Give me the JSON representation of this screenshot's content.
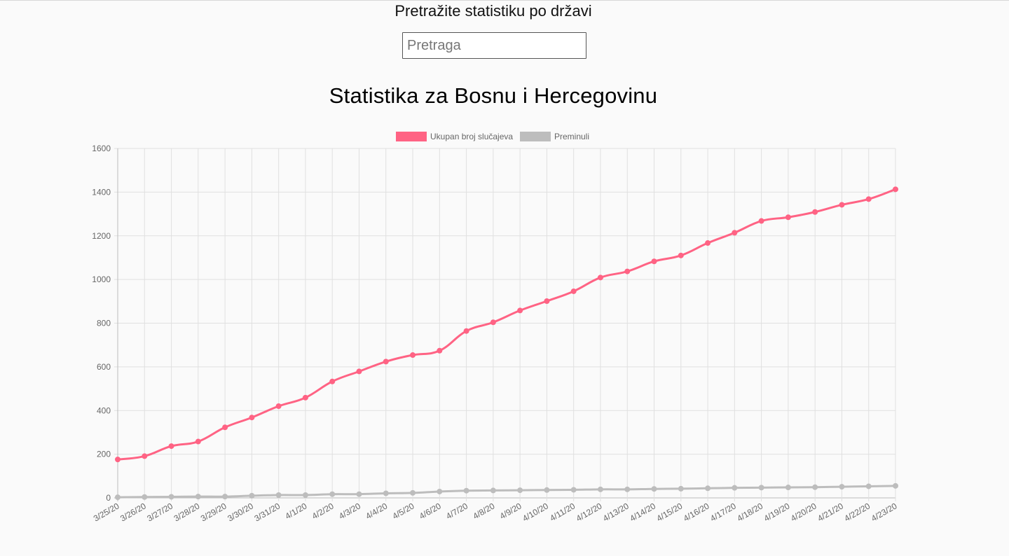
{
  "search": {
    "title": "Pretražite statistiku po državi",
    "placeholder": "Pretraga",
    "value": ""
  },
  "page_title": "Statistika za Bosnu i Hercegovinu",
  "colors": {
    "cases": "#ff6384",
    "deaths": "#bdbdbd",
    "grid": "#e0e0e0",
    "axis_text": "#666666"
  },
  "chart_data": {
    "type": "line",
    "title": "Statistika za Bosnu i Hercegovinu",
    "xlabel": "",
    "ylabel": "",
    "ylim": [
      0,
      1600
    ],
    "yticks": [
      0,
      200,
      400,
      600,
      800,
      1000,
      1200,
      1400,
      1600
    ],
    "grid": true,
    "legend_position": "top-center",
    "categories": [
      "3/25/20",
      "3/26/20",
      "3/27/20",
      "3/28/20",
      "3/29/20",
      "3/30/20",
      "3/31/20",
      "4/1/20",
      "4/2/20",
      "4/3/20",
      "4/4/20",
      "4/5/20",
      "4/6/20",
      "4/7/20",
      "4/8/20",
      "4/9/20",
      "4/10/20",
      "4/11/20",
      "4/12/20",
      "4/13/20",
      "4/14/20",
      "4/15/20",
      "4/16/20",
      "4/17/20",
      "4/18/20",
      "4/19/20",
      "4/20/20",
      "4/21/20",
      "4/22/20",
      "4/23/20"
    ],
    "series": [
      {
        "name": "Ukupan broj slučajeva",
        "color": "#ff6384",
        "values": [
          176,
          191,
          237,
          258,
          323,
          368,
          420,
          459,
          533,
          579,
          624,
          654,
          674,
          764,
          804,
          858,
          901,
          946,
          1009,
          1037,
          1083,
          1110,
          1167,
          1214,
          1268,
          1285,
          1309,
          1342,
          1368,
          1413
        ]
      },
      {
        "name": "Preminuli",
        "color": "#bdbdbd",
        "values": [
          3,
          4,
          5,
          6,
          6,
          10,
          13,
          13,
          17,
          17,
          21,
          23,
          29,
          33,
          34,
          35,
          36,
          37,
          39,
          39,
          41,
          42,
          44,
          46,
          47,
          48,
          49,
          51,
          53,
          55
        ]
      }
    ]
  }
}
